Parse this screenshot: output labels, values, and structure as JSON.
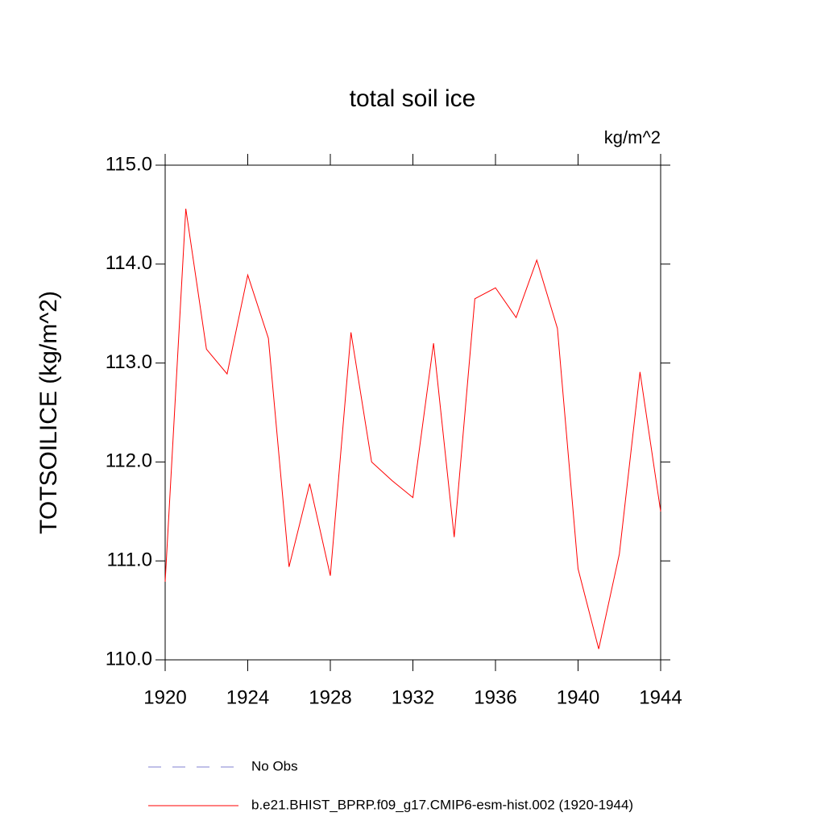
{
  "chart_data": {
    "type": "line",
    "title": "total soil ice",
    "subtitle": "kg/m^2",
    "y_label": "TOTSOILICE  (kg/m^2)",
    "x": [
      1920,
      1921,
      1922,
      1923,
      1924,
      1925,
      1926,
      1927,
      1928,
      1929,
      1930,
      1931,
      1932,
      1933,
      1934,
      1935,
      1936,
      1937,
      1938,
      1939,
      1940,
      1941,
      1942,
      1943,
      1944
    ],
    "series": [
      {
        "name": "b.e21.BHIST_BPRP.f09_g17.CMIP6-esm-hist.002 (1920-1944)",
        "color": "#ff0000",
        "values": [
          110.79,
          114.56,
          113.14,
          112.89,
          113.89,
          113.25,
          110.94,
          111.78,
          110.85,
          113.31,
          112.0,
          111.81,
          111.64,
          113.2,
          111.24,
          113.65,
          113.76,
          113.46,
          114.04,
          113.35,
          110.92,
          110.11,
          111.07,
          112.91,
          111.5
        ]
      }
    ],
    "legend": [
      {
        "name": "No Obs",
        "color": "#8080d0",
        "dash": true
      }
    ],
    "xlim": [
      1920,
      1944
    ],
    "xticks": [
      1920,
      1924,
      1928,
      1932,
      1936,
      1940,
      1944
    ],
    "ylim": [
      110,
      115
    ],
    "yticks": [
      {
        "value": 110,
        "label": "110.0"
      },
      {
        "value": 111,
        "label": "111.0"
      },
      {
        "value": 112,
        "label": "112.0"
      },
      {
        "value": 113,
        "label": "113.0"
      },
      {
        "value": 114,
        "label": "114.0"
      },
      {
        "value": 115,
        "label": "115.0"
      }
    ]
  }
}
